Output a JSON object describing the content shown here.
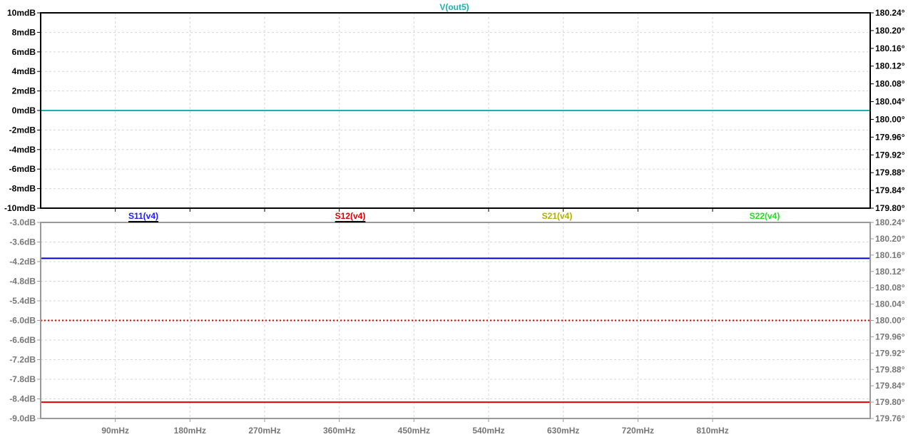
{
  "colors": {
    "background": "#ffffff",
    "grid": "#d6d6d6",
    "active_axis": "#000000",
    "inactive_axis": "#9a9a9a"
  },
  "chart_data": [
    {
      "type": "line",
      "title": "",
      "trace_labels": [
        {
          "text": "V(out5)",
          "color": "#1fb0b0",
          "underline": false
        }
      ],
      "x_range": [
        0,
        1000
      ],
      "x_ticks": [
        90,
        180,
        270,
        360,
        450,
        540,
        630,
        720,
        810
      ],
      "x_tick_labels": [],
      "y_left": {
        "range": [
          -10,
          10
        ],
        "ticks": [
          10,
          8,
          6,
          4,
          2,
          0,
          -2,
          -4,
          -6,
          -8,
          -10
        ],
        "tick_labels": [
          "10mdB",
          "8mdB",
          "6mdB",
          "4mdB",
          "2mdB",
          "0mdB",
          "-2mdB",
          "-4mdB",
          "-6mdB",
          "-8mdB",
          "-10mdB"
        ]
      },
      "y_right": {
        "range": [
          179.8,
          180.24
        ],
        "ticks": [
          180.24,
          180.2,
          180.16,
          180.12,
          180.08,
          180.04,
          180.0,
          179.96,
          179.92,
          179.88,
          179.84,
          179.8
        ],
        "tick_labels": [
          "180.24°",
          "180.20°",
          "180.16°",
          "180.12°",
          "180.08°",
          "180.04°",
          "180.00°",
          "179.96°",
          "179.92°",
          "179.88°",
          "179.84°",
          "179.80°"
        ]
      },
      "series": [
        {
          "axis": "left",
          "color": "#1fb0b0",
          "dashed": false,
          "x": [
            0,
            1000
          ],
          "y": [
            0,
            0
          ]
        }
      ]
    },
    {
      "type": "line",
      "title": "",
      "trace_labels": [
        {
          "text": "S11(v4)",
          "color": "#1a1aff",
          "underline": true
        },
        {
          "text": "S12(v4)",
          "color": "#e00000",
          "underline": true
        },
        {
          "text": "S21(v4)",
          "color": "#b0b000",
          "underline": false
        },
        {
          "text": "S22(v4)",
          "color": "#22dd22",
          "underline": false
        }
      ],
      "x_range": [
        0,
        1000
      ],
      "x_ticks": [
        90,
        180,
        270,
        360,
        450,
        540,
        630,
        720,
        810
      ],
      "x_tick_labels": [
        "90mHz",
        "180mHz",
        "270mHz",
        "360mHz",
        "450mHz",
        "540mHz",
        "630mHz",
        "720mHz",
        "810mHz"
      ],
      "y_left": {
        "range": [
          -9.0,
          -3.0
        ],
        "ticks": [
          -3.0,
          -3.6,
          -4.2,
          -4.8,
          -5.4,
          -6.0,
          -6.6,
          -7.2,
          -7.8,
          -8.4,
          -9.0
        ],
        "tick_labels": [
          "-3.0dB",
          "-3.6dB",
          "-4.2dB",
          "-4.8dB",
          "-5.4dB",
          "-6.0dB",
          "-6.6dB",
          "-7.2dB",
          "-7.8dB",
          "-8.4dB",
          "-9.0dB"
        ]
      },
      "y_right": {
        "range": [
          179.76,
          180.24
        ],
        "ticks": [
          180.24,
          180.2,
          180.16,
          180.12,
          180.08,
          180.04,
          180.0,
          179.96,
          179.92,
          179.88,
          179.84,
          179.8,
          179.76
        ],
        "tick_labels": [
          "180.24°",
          "180.20°",
          "180.16°",
          "180.12°",
          "180.08°",
          "180.04°",
          "180.00°",
          "179.96°",
          "179.92°",
          "179.88°",
          "179.84°",
          "179.80°",
          "179.76°"
        ]
      },
      "series": [
        {
          "axis": "left",
          "color": "#0000cc",
          "dashed": false,
          "x": [
            0,
            1000
          ],
          "y": [
            -4.1,
            -4.1
          ]
        },
        {
          "axis": "left",
          "color": "#e00000",
          "dashed": true,
          "x": [
            0,
            1000
          ],
          "y": [
            -6.0,
            -6.0
          ]
        },
        {
          "axis": "left",
          "color": "#e00000",
          "dashed": false,
          "x": [
            0,
            1000
          ],
          "y": [
            -8.5,
            -8.5
          ]
        }
      ]
    }
  ]
}
